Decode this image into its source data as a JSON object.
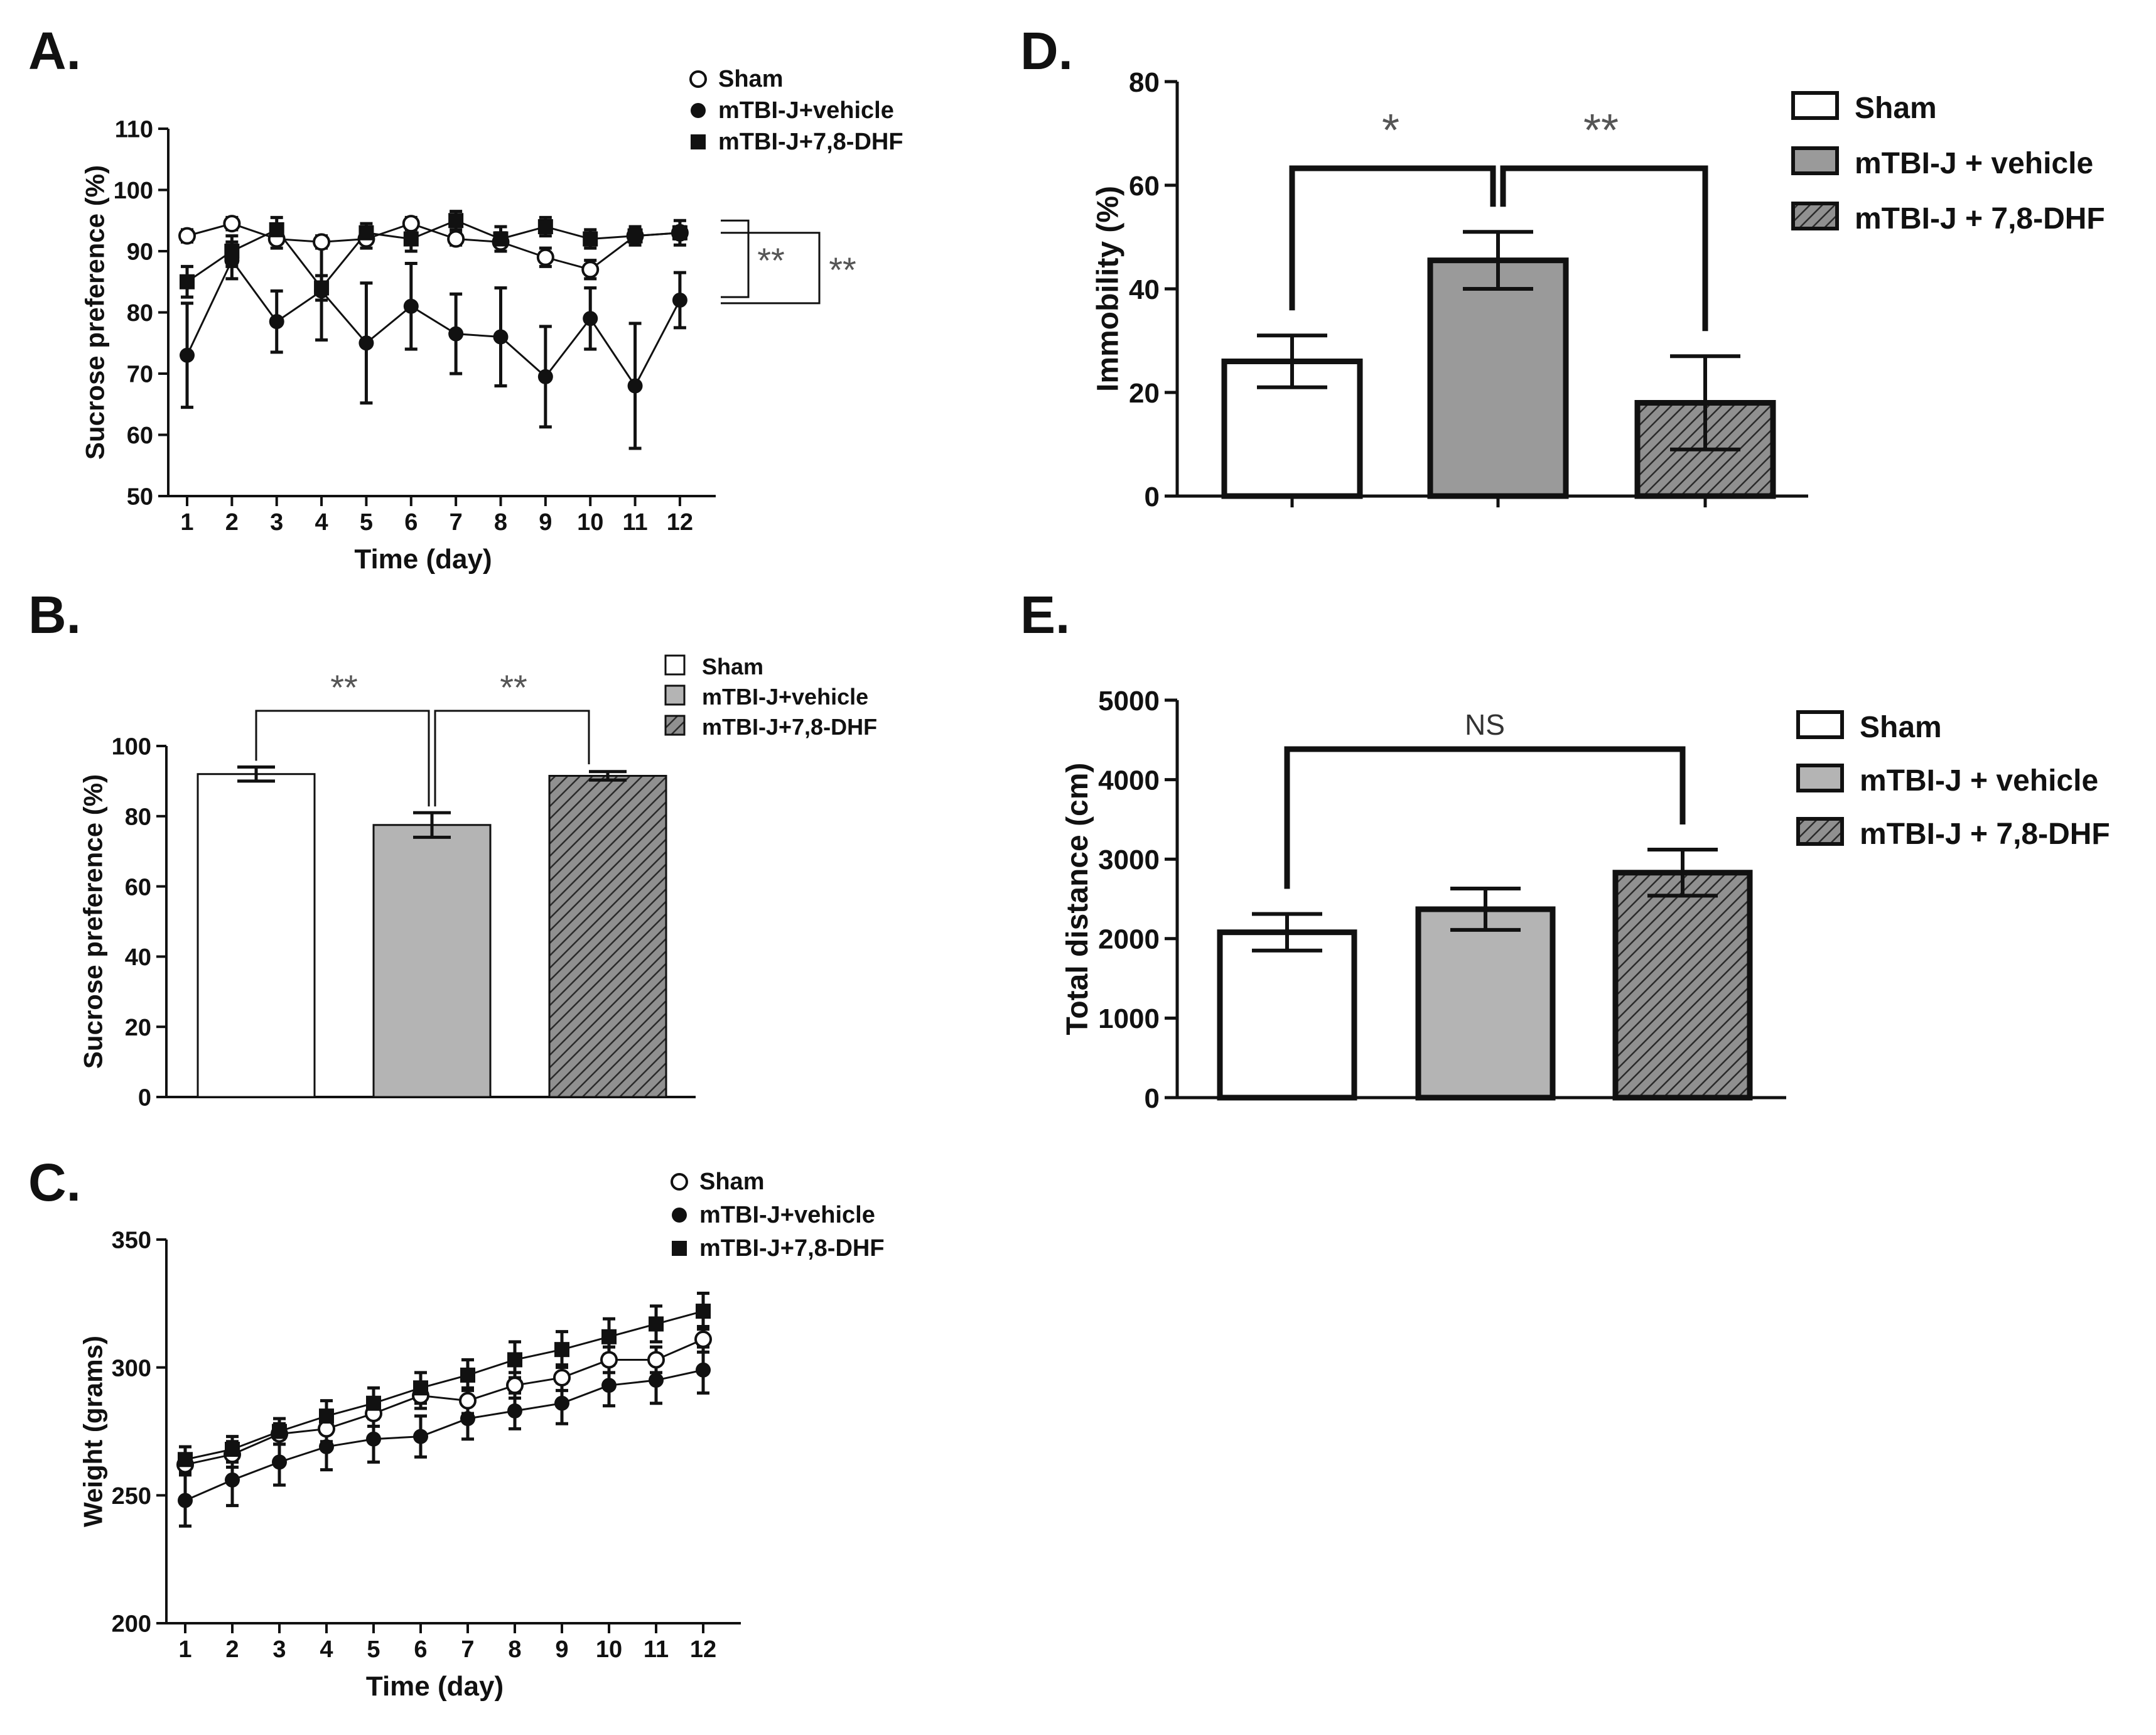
{
  "chart_data": [
    {
      "panel": "A.",
      "type": "line",
      "ylabel": "Sucrose preference (%)",
      "xlabel": "Time (day)",
      "ylim": [
        50,
        110
      ],
      "yticks": [
        50,
        60,
        70,
        80,
        90,
        100,
        110
      ],
      "x": [
        1,
        2,
        3,
        4,
        5,
        6,
        7,
        8,
        9,
        10,
        11,
        12
      ],
      "series": [
        {
          "name": "Sham",
          "marker": "open-circle",
          "values": [
            92.5,
            94.5,
            92,
            91.5,
            92,
            94.5,
            92,
            91.5,
            89,
            87,
            92.5,
            93
          ],
          "err": [
            1,
            1,
            1.5,
            1,
            1.5,
            1,
            1,
            1.5,
            1.5,
            1.5,
            1,
            1
          ]
        },
        {
          "name": "mTBI-J+vehicle",
          "marker": "filled-circle",
          "values": [
            73,
            88.5,
            78.5,
            83.5,
            75,
            81,
            76.5,
            76,
            69.5,
            79,
            68,
            82
          ],
          "err": [
            8.5,
            3,
            5,
            8,
            9.8,
            7,
            6.5,
            8,
            8.2,
            5,
            10.2,
            4.5
          ]
        },
        {
          "name": "mTBI-J+7,8-DHF",
          "marker": "square",
          "values": [
            85,
            90,
            93.5,
            84,
            93,
            92,
            95,
            92,
            94,
            92,
            92.5,
            93
          ],
          "err": [
            2.5,
            2.5,
            2,
            2,
            1.5,
            2,
            1.5,
            2,
            1.5,
            1.5,
            1.5,
            2
          ]
        }
      ],
      "annotations": [
        "**",
        "**"
      ]
    },
    {
      "panel": "B.",
      "type": "bar",
      "ylabel": "Sucrose preference (%)",
      "ylim": [
        0,
        100
      ],
      "yticks": [
        0,
        20,
        40,
        60,
        80,
        100
      ],
      "categories": [
        "Sham",
        "mTBI-J+vehicle",
        "mTBI-J+7,8-DHF"
      ],
      "values": [
        92,
        77.5,
        91.5
      ],
      "err": [
        2,
        3.5,
        1.2
      ],
      "annotations": [
        "**",
        "**"
      ]
    },
    {
      "panel": "C.",
      "type": "line",
      "ylabel": "Weight (grams)",
      "xlabel": "Time (day)",
      "ylim": [
        200,
        350
      ],
      "yticks": [
        200,
        250,
        300,
        350
      ],
      "x": [
        1,
        2,
        3,
        4,
        5,
        6,
        7,
        8,
        9,
        10,
        11,
        12
      ],
      "series": [
        {
          "name": "Sham",
          "marker": "open-circle",
          "values": [
            262,
            266,
            274,
            276,
            282,
            289,
            287,
            293,
            296,
            303,
            303,
            311
          ],
          "err": [
            4,
            5,
            4,
            5,
            5,
            5,
            5,
            5,
            5,
            5,
            5,
            5
          ]
        },
        {
          "name": "mTBI-J+vehicle",
          "marker": "filled-circle",
          "values": [
            248,
            256,
            263,
            269,
            272,
            273,
            280,
            283,
            286,
            293,
            295,
            299
          ],
          "err": [
            10,
            10,
            9,
            9,
            9,
            8,
            8,
            7,
            8,
            8,
            9,
            9
          ]
        },
        {
          "name": "mTBI-J+7,8-DHF",
          "marker": "square",
          "values": [
            264,
            268,
            275,
            281,
            286,
            292,
            297,
            303,
            307,
            312,
            317,
            322
          ],
          "err": [
            5,
            5,
            5,
            6,
            6,
            6,
            6,
            7,
            7,
            7,
            7,
            7
          ]
        }
      ]
    },
    {
      "panel": "D.",
      "type": "bar",
      "ylabel": "Immobility (%)",
      "ylim": [
        0,
        80
      ],
      "yticks": [
        0,
        20,
        40,
        60,
        80
      ],
      "categories": [
        "Sham",
        "mTBI-J + vehicle",
        "mTBI-J + 7,8-DHF"
      ],
      "values": [
        26,
        45.5,
        18
      ],
      "err": [
        5,
        5.5,
        9
      ],
      "annotations": [
        "*",
        "**"
      ]
    },
    {
      "panel": "E.",
      "type": "bar",
      "ylabel": "Total distance (cm)",
      "ylim": [
        0,
        5000
      ],
      "yticks": [
        0,
        1000,
        2000,
        3000,
        4000,
        5000
      ],
      "categories": [
        "Sham",
        "mTBI-J + vehicle",
        "mTBI-J + 7,8-DHF"
      ],
      "values": [
        2080,
        2370,
        2830
      ],
      "err": [
        230,
        260,
        290
      ],
      "annotations": [
        "NS"
      ]
    }
  ]
}
